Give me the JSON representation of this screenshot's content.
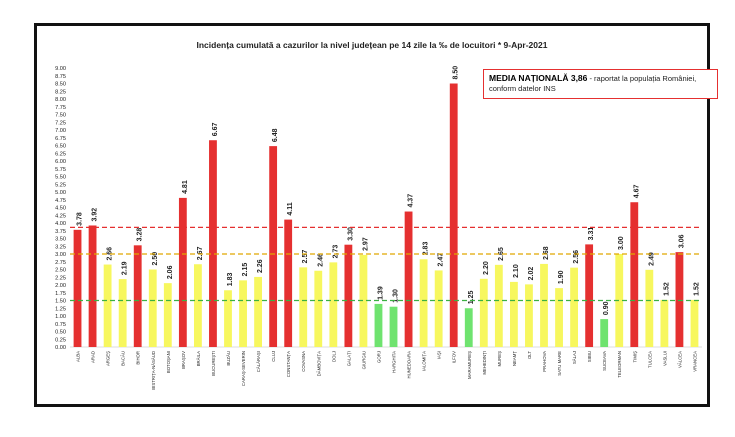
{
  "chart_data": {
    "type": "bar",
    "title": "Incidența cumulată a cazurilor la nivel județean pe 14 zile la ‰ de locuitori *",
    "date": "9-Apr-2021",
    "ylim": [
      0,
      9
    ],
    "yticks": [
      "0.00",
      "0.25",
      "0.50",
      "0.75",
      "1.00",
      "1.25",
      "1.50",
      "1.75",
      "2.00",
      "2.25",
      "2.50",
      "2.75",
      "3.00",
      "3.25",
      "3.50",
      "3.75",
      "4.00",
      "4.25",
      "4.50",
      "4.75",
      "5.00",
      "5.25",
      "5.50",
      "5.75",
      "6.00",
      "6.25",
      "6.50",
      "6.75",
      "7.00",
      "7.25",
      "7.50",
      "7.75",
      "8.00",
      "8.25",
      "8.50",
      "8.75",
      "9.00"
    ],
    "categories": [
      "ALBA",
      "ARAD",
      "ARGEȘ",
      "BACĂU",
      "BIHOR",
      "BISTRIȚA-NĂSĂUD",
      "BOTOȘANI",
      "BRAȘOV",
      "BRĂILA",
      "BUCUREȘTI",
      "BUZĂU",
      "CARAȘ-SEVERIN",
      "CĂLĂRAȘI",
      "CLUJ",
      "CONSTANȚA",
      "COVASNA",
      "DÂMBOVIȚA",
      "DOLJ",
      "GALAȚI",
      "GIURGIU",
      "GORJ",
      "HARGHITA",
      "HUNEDOARA",
      "IALOMIȚA",
      "IAȘI",
      "ILFOV",
      "MARAMUREȘ",
      "MEHEDINȚI",
      "MUREȘ",
      "NEAMȚ",
      "OLT",
      "PRAHOVA",
      "SATU MARE",
      "SĂLAJ",
      "SIBIU",
      "SUCEAVA",
      "TELEORMAN",
      "TIMIȘ",
      "TULCEA",
      "VASLUI",
      "VÂLCEA",
      "VRANCEA"
    ],
    "values": [
      3.78,
      3.92,
      2.66,
      2.19,
      3.28,
      2.5,
      2.06,
      4.81,
      2.67,
      6.67,
      1.83,
      2.15,
      2.26,
      6.48,
      4.11,
      2.57,
      2.46,
      2.73,
      3.3,
      2.97,
      1.39,
      1.3,
      4.37,
      2.83,
      2.47,
      8.5,
      1.25,
      2.2,
      2.65,
      2.1,
      2.02,
      2.68,
      1.9,
      2.56,
      3.31,
      0.9,
      3.0,
      4.67,
      2.49,
      1.52,
      3.06,
      1.52
    ],
    "value_labels": [
      "3.78",
      "3.92",
      "2.66",
      "2.19",
      "3.28",
      "2.50",
      "2.06",
      "4.81",
      "2.67",
      "6.67",
      "1.83",
      "2.15",
      "2.26",
      "6.48",
      "4.11",
      "2.57",
      "2.46",
      "2.73",
      "3.30",
      "2.97",
      "1.39",
      "1.30",
      "4.37",
      "2.83",
      "2.47",
      "8.50",
      "1.25",
      "2.20",
      "2.65",
      "2.10",
      "2.02",
      "2.68",
      "1.90",
      "2.56",
      "3.31",
      "0.90",
      "3.00",
      "4.67",
      "2.49",
      "1.52",
      "3.06",
      "1.52"
    ],
    "thresholds": [
      {
        "value": 1.5,
        "color": "#3cb043"
      },
      {
        "value": 3.0,
        "color": "#e0a800"
      },
      {
        "value": 3.86,
        "color": "#e53030"
      }
    ],
    "colors": {
      "red": "#e53030",
      "yellow": "#f7f75e",
      "green": "#6fe36f"
    },
    "annotation": {
      "bold": "MEDIA NAȚIONALĂ 3,86",
      "text": " - raportat la populația României,",
      "line2": "conform datelor INS"
    },
    "grid": false,
    "legend": "top-right"
  }
}
